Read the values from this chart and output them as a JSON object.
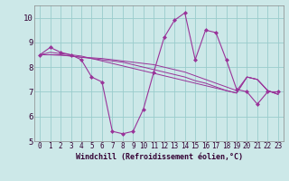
{
  "xlabel": "Windchill (Refroidissement éolien,°C)",
  "background_color": "#cce8e8",
  "grid_color": "#99cccc",
  "line_color": "#993399",
  "xlim": [
    -0.5,
    23.5
  ],
  "ylim": [
    5.0,
    10.5
  ],
  "yticks": [
    5,
    6,
    7,
    8,
    9,
    10
  ],
  "series_main": [
    8.5,
    8.8,
    8.6,
    8.5,
    8.3,
    7.6,
    7.4,
    5.4,
    5.3,
    5.4,
    6.3,
    7.8,
    9.2,
    9.9,
    10.2,
    8.3,
    9.5,
    9.4,
    8.3,
    7.1,
    7.0,
    6.5,
    7.0,
    7.0
  ],
  "series_trend1": [
    8.5,
    8.6,
    8.55,
    8.5,
    8.45,
    8.35,
    8.25,
    8.15,
    8.05,
    7.95,
    7.85,
    7.75,
    7.65,
    7.55,
    7.45,
    7.35,
    7.25,
    7.15,
    7.05,
    6.95,
    7.6,
    7.5,
    7.05,
    6.9
  ],
  "series_trend2": [
    8.5,
    8.5,
    8.5,
    8.45,
    8.4,
    8.35,
    8.3,
    8.25,
    8.2,
    8.1,
    8.0,
    7.9,
    7.8,
    7.7,
    7.6,
    7.45,
    7.35,
    7.2,
    7.05,
    6.95,
    7.6,
    7.5,
    7.05,
    6.9
  ],
  "series_trend3": [
    8.5,
    8.5,
    8.48,
    8.45,
    8.4,
    8.38,
    8.35,
    8.3,
    8.25,
    8.2,
    8.15,
    8.1,
    8.0,
    7.9,
    7.8,
    7.65,
    7.5,
    7.35,
    7.2,
    7.05,
    7.6,
    7.5,
    7.05,
    6.9
  ]
}
